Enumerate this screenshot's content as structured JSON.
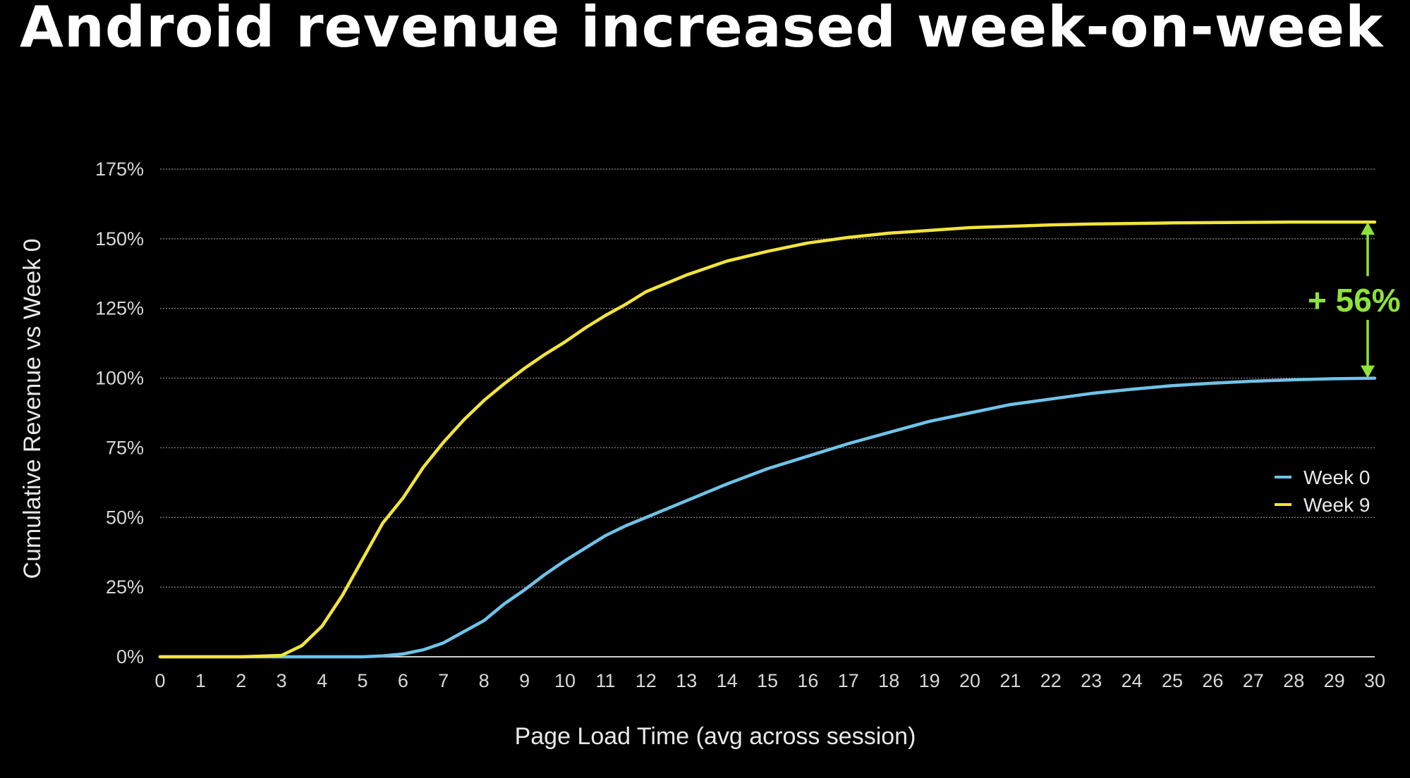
{
  "title": "Android revenue increased week-on-week",
  "chart_data": {
    "type": "line",
    "xlabel": "Page Load Time (avg across session)",
    "ylabel": "Cumulative Revenue vs Week 0",
    "xlim": [
      0,
      30
    ],
    "ylim": [
      0,
      175
    ],
    "x_ticks": [
      "0",
      "1",
      "2",
      "3",
      "4",
      "5",
      "6",
      "7",
      "8",
      "9",
      "10",
      "11",
      "12",
      "13",
      "14",
      "15",
      "16",
      "17",
      "18",
      "19",
      "20",
      "21",
      "22",
      "23",
      "24",
      "25",
      "26",
      "27",
      "28",
      "29",
      "30"
    ],
    "y_ticks": [
      "0%",
      "25%",
      "50%",
      "75%",
      "100%",
      "125%",
      "150%",
      "175%"
    ],
    "grid": "horizontal",
    "legend_position": "right",
    "x": [
      0,
      1,
      2,
      3,
      3.5,
      4,
      4.5,
      5,
      5.5,
      6,
      6.5,
      7,
      7.5,
      8,
      8.5,
      9,
      9.5,
      10,
      10.5,
      11,
      11.5,
      12,
      13,
      14,
      15,
      16,
      17,
      18,
      19,
      20,
      21,
      22,
      23,
      24,
      25,
      26,
      27,
      28,
      29,
      30
    ],
    "series": [
      {
        "name": "Week 0",
        "color": "#6fc3e8",
        "values": [
          0,
          0,
          0,
          0,
          0,
          0,
          0,
          0,
          0.3,
          1,
          2.5,
          5,
          9,
          13,
          19,
          24,
          29.5,
          34.5,
          39,
          43.5,
          47,
          50,
          56,
          62,
          67.5,
          72,
          76.5,
          80.5,
          84.5,
          87.5,
          90.5,
          92.5,
          94.5,
          96,
          97.3,
          98.2,
          98.9,
          99.4,
          99.8,
          100
        ]
      },
      {
        "name": "Week 9",
        "color": "#f2e43a",
        "values": [
          0,
          0,
          0,
          0.5,
          4,
          11,
          22,
          35,
          48,
          57,
          68,
          77,
          85,
          92,
          98,
          103.5,
          108.5,
          113,
          118,
          122.5,
          126.5,
          131,
          137,
          142,
          145.5,
          148.5,
          150.5,
          152,
          153,
          154,
          154.5,
          155,
          155.3,
          155.5,
          155.7,
          155.8,
          155.9,
          156,
          156,
          156
        ]
      }
    ],
    "annotation": {
      "text": "+ 56%",
      "color": "#8ce33a",
      "from_y": 100,
      "to_y": 156,
      "at_x": 30
    }
  }
}
